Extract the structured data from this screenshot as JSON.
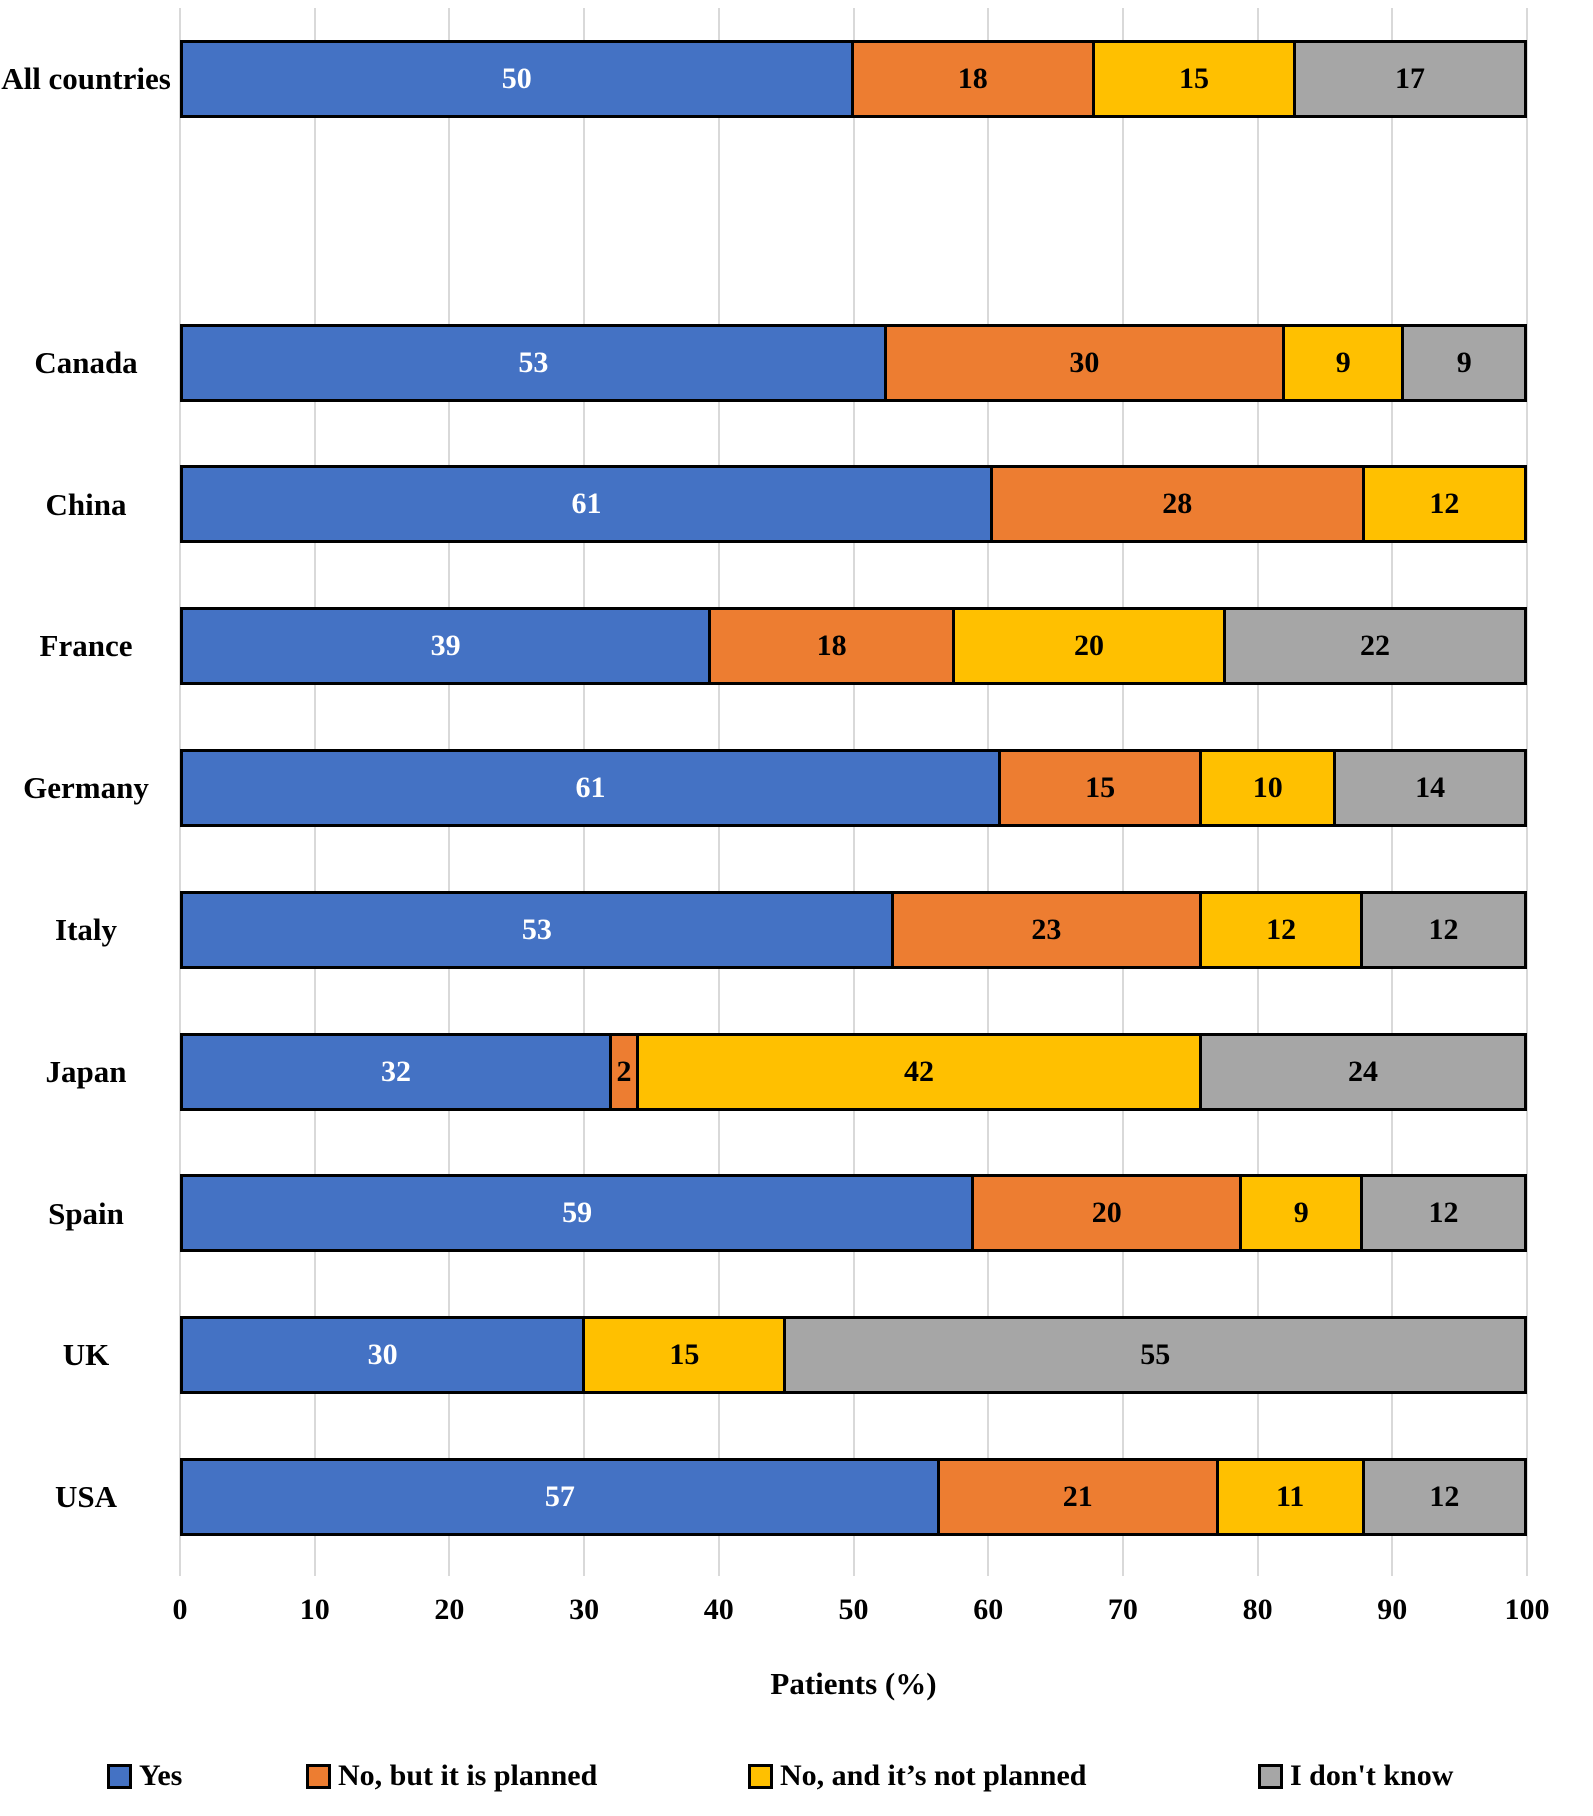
{
  "chart_data": {
    "type": "bar",
    "orientation": "horizontal-stacked",
    "title": "",
    "xlabel": "Patients (%)",
    "ylabel": "",
    "xlim": [
      0,
      100
    ],
    "xticks": [
      0,
      10,
      20,
      30,
      40,
      50,
      60,
      70,
      80,
      90,
      100
    ],
    "grid": true,
    "legend_position": "bottom",
    "categories": [
      "All countries",
      "Canada",
      "China",
      "France",
      "Germany",
      "Italy",
      "Japan",
      "Spain",
      "UK",
      "USA"
    ],
    "series": [
      {
        "name": "Yes",
        "color": "#4472C4",
        "label_color": "#ffffff",
        "values": [
          50,
          53,
          61,
          39,
          61,
          53,
          32,
          59,
          30,
          57
        ]
      },
      {
        "name": "No, but it is planned",
        "color": "#ED7D31",
        "label_color": "#000000",
        "values": [
          18,
          30,
          28,
          18,
          15,
          23,
          2,
          20,
          0,
          21
        ]
      },
      {
        "name": "No, and it’s not planned",
        "color": "#FFC000",
        "label_color": "#000000",
        "values": [
          15,
          9,
          12,
          20,
          10,
          12,
          42,
          9,
          15,
          11
        ]
      },
      {
        "name": "I don't know",
        "color": "#A6A6A6",
        "label_color": "#000000",
        "values": [
          17,
          9,
          0,
          22,
          14,
          12,
          24,
          12,
          55,
          12
        ]
      }
    ],
    "gridline_color": "#d9d9d9"
  }
}
